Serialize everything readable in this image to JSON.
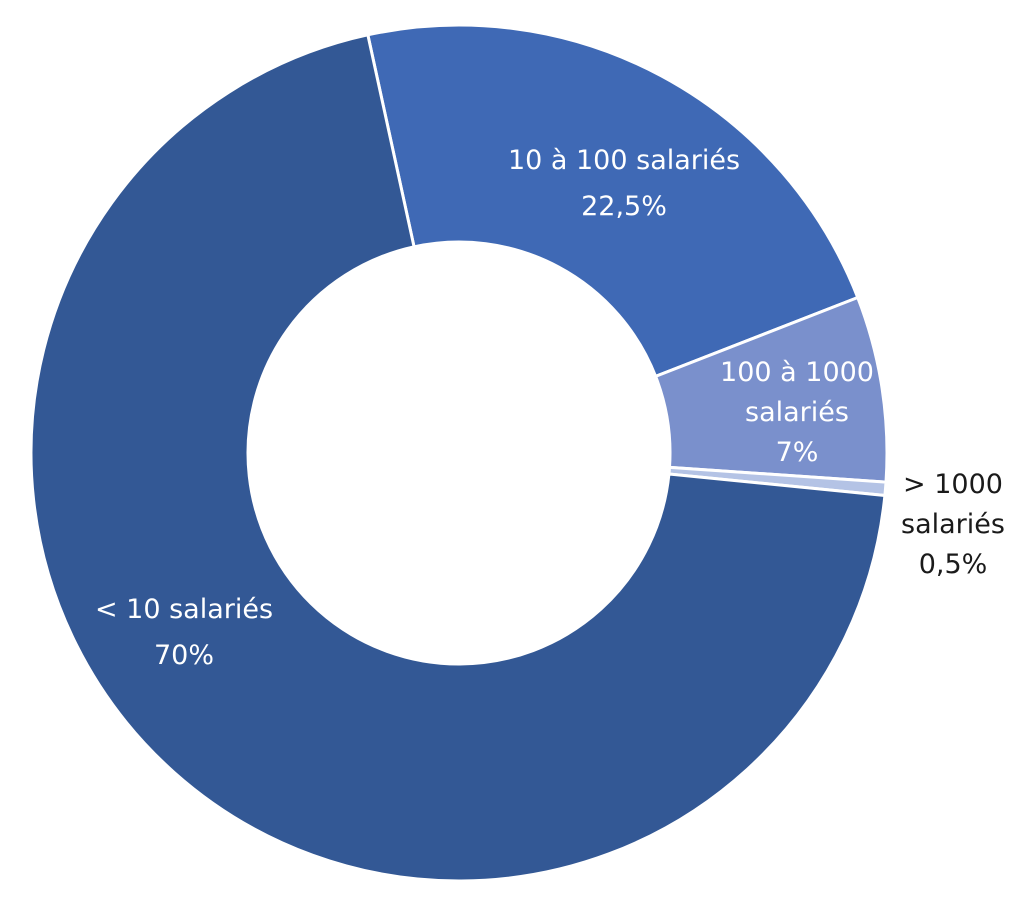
{
  "chart_data": {
    "type": "pie",
    "variant": "donut",
    "start_angle_deg": -12.3,
    "direction": "clockwise",
    "slices": [
      {
        "id": "s10-100",
        "lines": [
          "10 à 100 salariés",
          "22,5%"
        ],
        "value": 22.5,
        "color": "#3f69b5",
        "label_placement": "inside"
      },
      {
        "id": "s100-1000",
        "lines": [
          "100 à 1000",
          "salariés",
          "7%"
        ],
        "value": 7,
        "color": "#7a90cc",
        "label_placement": "inside"
      },
      {
        "id": "s1000plus",
        "lines": [
          "> 1000",
          "salariés",
          "0,5%"
        ],
        "value": 0.5,
        "color": "#b4c3e5",
        "label_placement": "outside"
      },
      {
        "id": "s-lt10",
        "lines": [
          "< 10 salariés",
          "70%"
        ],
        "value": 70,
        "color": "#335895",
        "label_placement": "inside"
      }
    ]
  }
}
